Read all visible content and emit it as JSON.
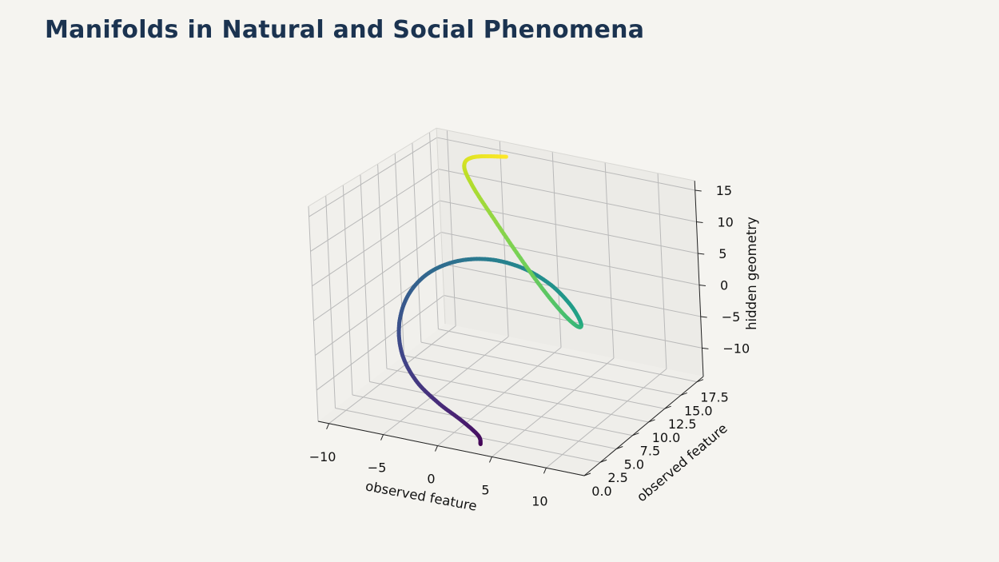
{
  "title": "Manifolds in Natural and Social Phenomena",
  "colors": {
    "background": "#f5f4f0",
    "title": "#1b3350",
    "pane": "#eeede9",
    "grid": "#b8b8b8",
    "colormap": "viridis"
  },
  "chart_data": {
    "type": "line",
    "projection": "3d",
    "grid": true,
    "legend": "none",
    "series": [
      {
        "color_by": "t",
        "colormap": "viridis",
        "x": [
          4.0,
          3.35,
          1.41,
          -1.25,
          -3.7,
          -5.37,
          -5.98,
          -5.49,
          -3.99,
          -1.72,
          0.89,
          3.37,
          5.36,
          6.61,
          7.05,
          6.71,
          5.65,
          3.97,
          1.74,
          -0.87,
          -3.56,
          -5.9,
          -7.16,
          -6.65,
          -4.11
        ],
        "y": [
          0.0,
          0.75,
          1.5,
          2.25,
          3.0,
          3.75,
          4.5,
          5.25,
          6.0,
          6.75,
          7.5,
          8.25,
          9.0,
          9.75,
          10.5,
          11.25,
          12.0,
          12.75,
          13.5,
          14.25,
          15.0,
          15.75,
          16.5,
          17.25,
          18.0
        ],
        "z": [
          -13.0,
          -12.54,
          -11.59,
          -10.34,
          -8.46,
          -5.6,
          -1.89,
          1.95,
          5.12,
          7.12,
          7.68,
          6.71,
          4.47,
          1.5,
          -1.34,
          -3.23,
          -3.84,
          -3.04,
          -0.71,
          2.97,
          7.19,
          10.85,
          13.23,
          14.26,
          14.65
        ]
      }
    ],
    "axes": {
      "x": {
        "label": "observed feature",
        "range": [
          -11,
          13.5
        ],
        "ticks": [
          -10,
          -5,
          0,
          5,
          10
        ],
        "tick_labels": [
          "−10",
          "−5",
          "0",
          "5",
          "10"
        ]
      },
      "y": {
        "label": "observed feature",
        "range": [
          0,
          18.5
        ],
        "ticks": [
          0,
          2.5,
          5,
          7.5,
          10,
          12.5,
          15,
          17.5
        ],
        "tick_labels": [
          "0.0",
          "2.5",
          "5.0",
          "7.5",
          "10.0",
          "12.5",
          "15.0",
          "17.5"
        ]
      },
      "z": {
        "label": "hidden geometry",
        "range": [
          -14.5,
          16.5
        ],
        "ticks": [
          -10,
          -5,
          0,
          5,
          10,
          15
        ],
        "tick_labels": [
          "−10",
          "−5",
          "0",
          "5",
          "10",
          "15"
        ]
      }
    }
  }
}
